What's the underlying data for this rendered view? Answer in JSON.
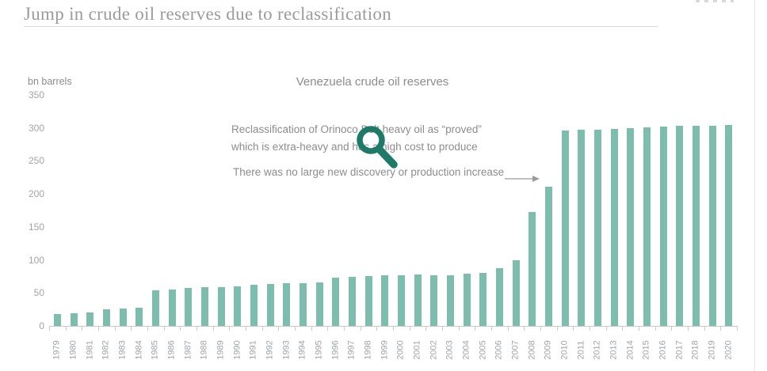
{
  "page": {
    "title": "Jump in crude oil reserves due to reclassification"
  },
  "colors": {
    "bar": "#7dbdae",
    "magnifier": "#1c7a66",
    "axis": "#c9c9c9",
    "text_muted": "#8c8c8c"
  },
  "chart_data": {
    "type": "bar",
    "title": "Venezuela crude oil reserves",
    "ylabel": "bn barrels",
    "xlabel": "",
    "ylim": [
      0,
      350
    ],
    "yticks": [
      350,
      300,
      250,
      200,
      150,
      100,
      50,
      0
    ],
    "grid": false,
    "legend": "none",
    "categories": [
      "1979",
      "1980",
      "1981",
      "1982",
      "1983",
      "1984",
      "1985",
      "1986",
      "1987",
      "1988",
      "1989",
      "1990",
      "1991",
      "1992",
      "1993",
      "1994",
      "1995",
      "1996",
      "1997",
      "1998",
      "1999",
      "2000",
      "2001",
      "2002",
      "2003",
      "2004",
      "2005",
      "2006",
      "2007",
      "2008",
      "2009",
      "2010",
      "2011",
      "2012",
      "2013",
      "2014",
      "2015",
      "2016",
      "2017",
      "2018",
      "2019",
      "2020"
    ],
    "values": [
      17.9,
      19.5,
      19.9,
      24.6,
      25.9,
      28.0,
      54.5,
      55.5,
      58.1,
      58.5,
      59.0,
      60.1,
      62.6,
      63.3,
      64.4,
      64.9,
      66.3,
      72.7,
      74.9,
      76.1,
      76.8,
      76.8,
      77.7,
      77.3,
      77.2,
      79.7,
      80.0,
      87.3,
      99.4,
      172.3,
      211.2,
      296.5,
      297.6,
      297.7,
      298.4,
      300.0,
      300.9,
      302.3,
      303.2,
      303.3,
      303.8,
      303.9
    ],
    "annotations": {
      "reclassification_line1": "Reclassification of Orinoco Belt heavy oil as “proved”",
      "reclassification_line2": "which is extra-heavy and has a high cost to produce",
      "no_discovery": "There was no large new discovery or production increase"
    }
  }
}
